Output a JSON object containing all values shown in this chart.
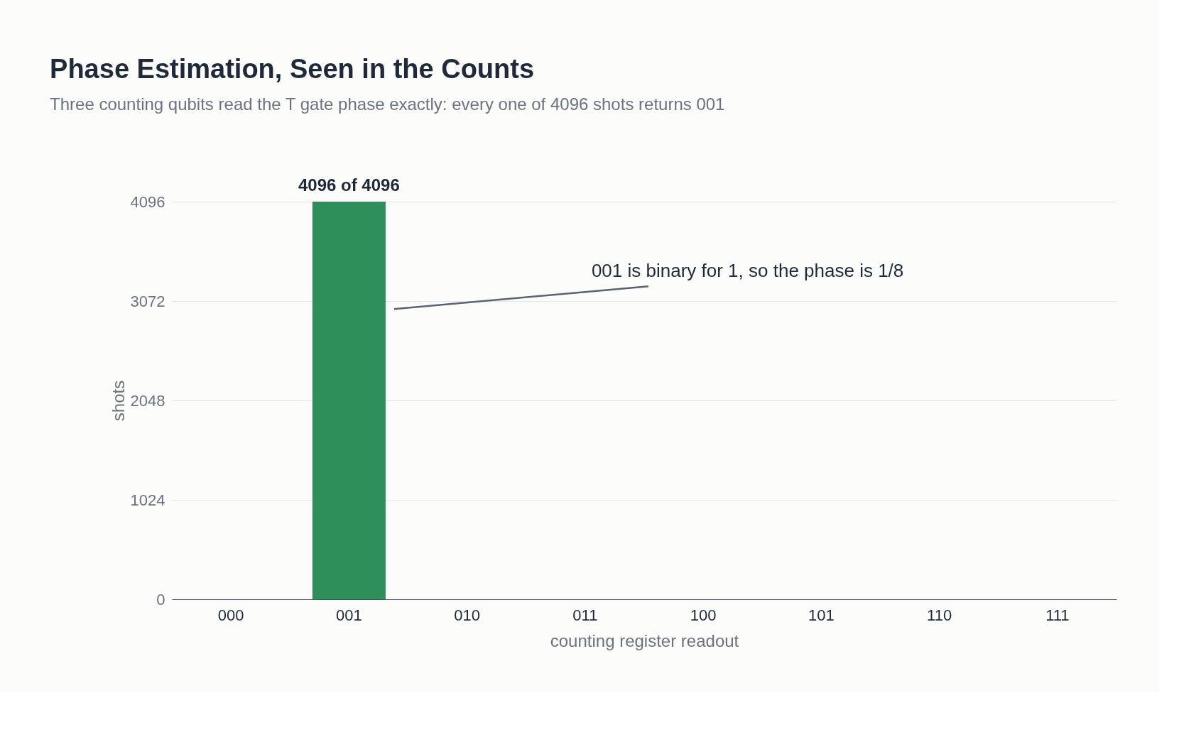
{
  "chart_data": {
    "type": "bar",
    "title": "Phase Estimation, Seen in the Counts",
    "subtitle": "Three counting qubits read the T gate phase exactly: every one of 4096 shots returns 001",
    "xlabel": "counting register readout",
    "ylabel": "shots",
    "categories": [
      "000",
      "001",
      "010",
      "011",
      "100",
      "101",
      "110",
      "111"
    ],
    "values": [
      0,
      4096,
      0,
      0,
      0,
      0,
      0,
      0
    ],
    "value_labels": [
      null,
      "4096 of 4096",
      null,
      null,
      null,
      null,
      null,
      null
    ],
    "color": "#2e8f5a",
    "ylim": [
      0,
      4096
    ],
    "yticks": [
      0,
      1024,
      2048,
      3072,
      4096
    ],
    "grid": "y",
    "annotations": [
      "001 is binary for 1, so the phase is 1/8"
    ]
  }
}
